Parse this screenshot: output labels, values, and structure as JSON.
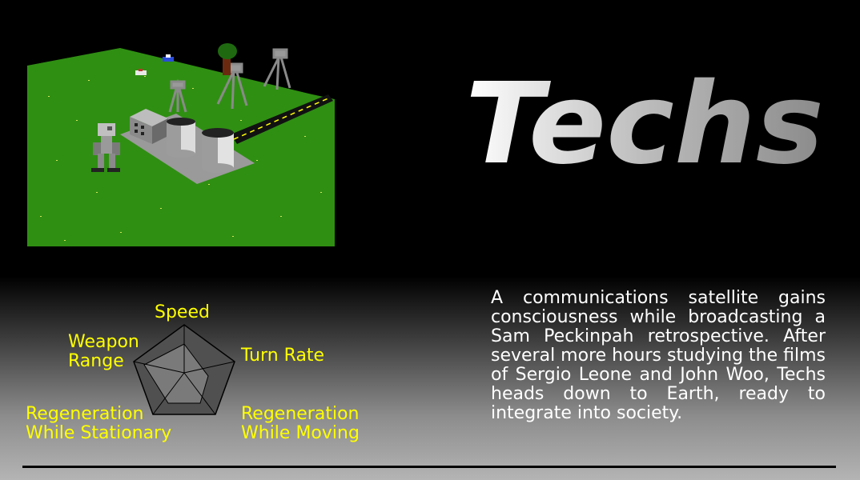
{
  "title": "Techs",
  "stats": {
    "speed": "Speed",
    "weapon_range_line1": "Weapon",
    "weapon_range_line2": "Range",
    "turn_rate": "Turn Rate",
    "regen_stationary_line1": "Regeneration",
    "regen_stationary_line2": "While Stationary",
    "regen_moving_line1": "Regeneration",
    "regen_moving_line2": "While Moving"
  },
  "description": "A communications satellite gains consciousness while broadcasting a Sam Peckinpah retrospective. After several more hours studying the films of Sergio Leone and John Woo, Techs heads down to Earth, ready to integrate into society.",
  "colors": {
    "stat_label": "#ffff00",
    "grass": "#2f8f12",
    "description_text": "#ffffff"
  }
}
